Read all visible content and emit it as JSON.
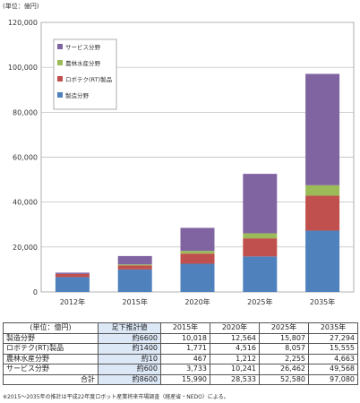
{
  "chart_data": {
    "type": "bar",
    "stacked": true,
    "unit_label": "(単位：億円)",
    "categories": [
      "2012年",
      "2015年",
      "2020年",
      "2025年",
      "2035年"
    ],
    "ylim": [
      0,
      120000
    ],
    "yticks": [
      "0",
      "20,000",
      "40,000",
      "60,000",
      "80,000",
      "100,000",
      "120,000"
    ],
    "ytick_values": [
      0,
      20000,
      40000,
      60000,
      80000,
      100000,
      120000
    ],
    "grid": true,
    "legend_position": "top-left",
    "series": [
      {
        "name": "製造分野",
        "color": "#4f81bd",
        "values": [
          6600,
          10018,
          12564,
          15807,
          27294
        ]
      },
      {
        "name": "ロボテク(RT)製品",
        "color": "#c0504d",
        "values": [
          1400,
          1771,
          4516,
          8057,
          15555
        ]
      },
      {
        "name": "農林水産分野",
        "color": "#9bbb59",
        "values": [
          10,
          467,
          1212,
          2255,
          4663
        ]
      },
      {
        "name": "サービス分野",
        "color": "#8064a2",
        "values": [
          600,
          3733,
          10241,
          26462,
          49568
        ]
      }
    ]
  },
  "table": {
    "headers": [
      "(単位：億円)",
      "足下推計値",
      "2015年",
      "2020年",
      "2025年",
      "2035年"
    ],
    "rows": [
      {
        "name": "製造分野",
        "est": "約6600",
        "vals": [
          "10,018",
          "12,564",
          "15,807",
          "27,294"
        ]
      },
      {
        "name": "ロボテク(RT)製品",
        "est": "約1400",
        "vals": [
          "1,771",
          "4,516",
          "8,057",
          "15,555"
        ]
      },
      {
        "name": "農林水産分野",
        "est": "約10",
        "vals": [
          "467",
          "1,212",
          "2,255",
          "4,663"
        ]
      },
      {
        "name": "サービス分野",
        "est": "約600",
        "vals": [
          "3,733",
          "10,241",
          "26,462",
          "49,568"
        ]
      },
      {
        "name": "合計",
        "est": "約8600",
        "vals": [
          "15,990",
          "28,533",
          "52,580",
          "97,080"
        ]
      }
    ]
  },
  "footnote": "※2015～2035年の推計は平成22年度ロボット産業将来市場調査（経産省・NEDO）による。"
}
